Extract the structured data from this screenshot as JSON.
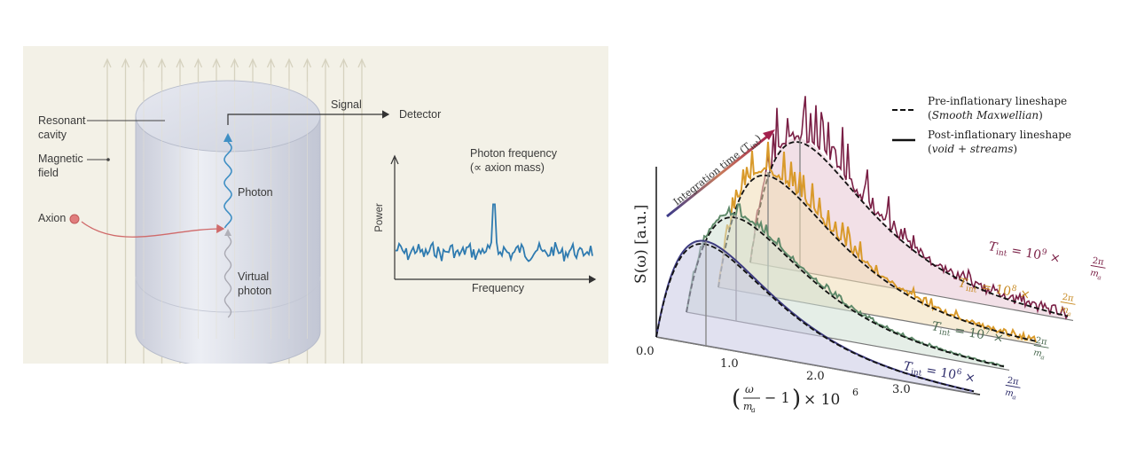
{
  "left_diagram": {
    "resonant_cavity_label_1": "Resonant",
    "resonant_cavity_label_2": "cavity",
    "magnetic_field_label_1": "Magnetic",
    "magnetic_field_label_2": "field",
    "axion_label": "Axion",
    "photon_label": "Photon",
    "virtual_photon_label_1": "Virtual",
    "virtual_photon_label_2": "photon",
    "signal_label": "Signal",
    "detector_label": "Detector",
    "inset_peak_label_1": "Photon frequency",
    "inset_peak_label_2": "(∝ axion mass)",
    "inset_y_label": "Power",
    "inset_x_label": "Frequency"
  },
  "right_plot": {
    "legend_pre_1": "Pre-inflationary lineshape",
    "legend_pre_2": "Smooth Maxwellian",
    "legend_post_1": "Post-inflationary lineshape",
    "legend_post_2": "void + streams",
    "integration_time_label": "Integration time (T",
    "integration_time_sub": "int",
    "y_axis_label": "S(ω) [a.u.]",
    "x_ticks": [
      "0.0",
      "1.0",
      "2.0",
      "3.0"
    ],
    "x_axis_label": "× 10",
    "x_axis_exp": "6",
    "curve_labels": [
      {
        "T": "T",
        "sub": "int",
        "eq": " = 10",
        "exp": "9",
        "times": " × ",
        "color": "#7a1f45"
      },
      {
        "T": "T",
        "sub": "int",
        "eq": " = 10",
        "exp": "8",
        "times": " × ",
        "color": "#c88a23"
      },
      {
        "T": "T",
        "sub": "int",
        "eq": " = 10",
        "exp": "7",
        "times": " × ",
        "color": "#4c6b52"
      },
      {
        "T": "T",
        "sub": "int",
        "eq": " = 10",
        "exp": "6",
        "times": " × ",
        "color": "#2e2d6b"
      }
    ],
    "fraction_num": "2π",
    "fraction_den": "m",
    "fraction_den_sub": "a"
  },
  "colors": {
    "background": "#f3f1e7",
    "cavity": "#d9dbe6",
    "wave": "#3f8fc4",
    "inset_line": "#2f7bb0",
    "axion": "#e07d7d",
    "curve_9": "#7a1f45",
    "curve_8": "#d99a2b",
    "curve_7": "#5f8a6a",
    "curve_6": "#3e3c80"
  }
}
